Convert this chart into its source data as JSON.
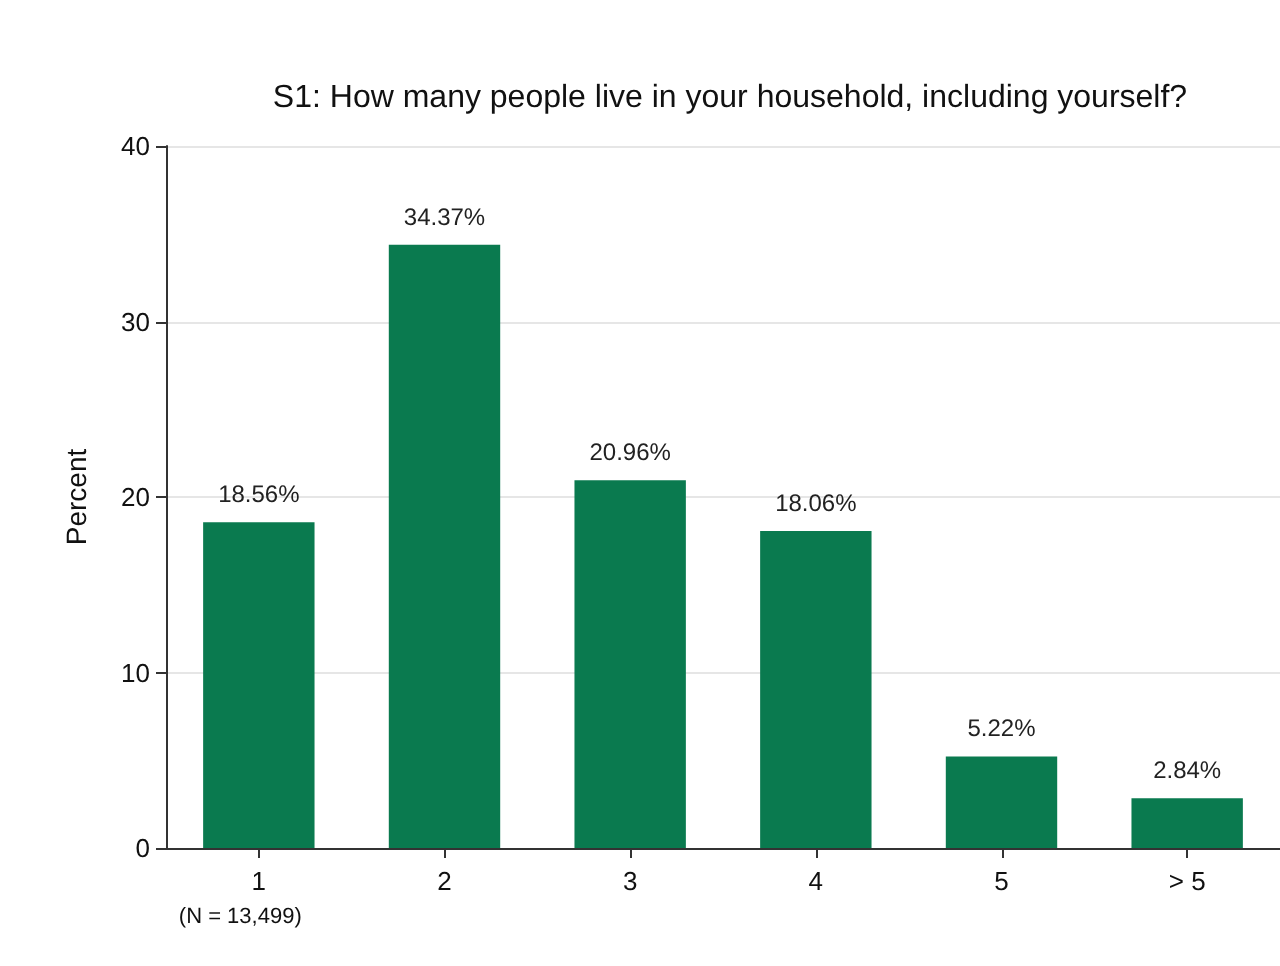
{
  "chart_data": {
    "type": "bar",
    "title": "S1: How many people live in your household, including yourself?",
    "ylabel": "Percent",
    "categories": [
      "1",
      "2",
      "3",
      "4",
      "5",
      "> 5"
    ],
    "values": [
      18.56,
      34.37,
      20.96,
      18.06,
      5.22,
      2.84
    ],
    "value_labels": [
      "18.56%",
      "34.37%",
      "20.96%",
      "18.06%",
      "5.22%",
      "2.84%"
    ],
    "color": "#0a7a4f",
    "ylim": [
      0,
      40
    ],
    "yticks": [
      0,
      10,
      20,
      30,
      40
    ],
    "grid": "y",
    "annotations": [
      "(N = 13,499)"
    ]
  }
}
